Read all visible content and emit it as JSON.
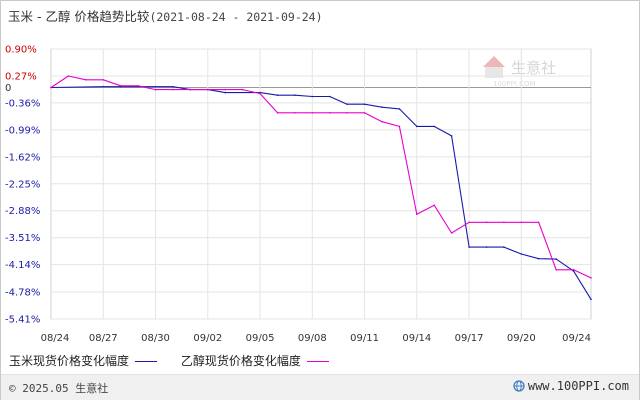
{
  "title": {
    "main": "玉米 - 乙醇 价格趋势比较",
    "range": "(2021-08-24 - 2021-09-24)"
  },
  "watermark": {
    "name": "生意社",
    "url": "100PPI.COM"
  },
  "footer": {
    "copyright": "© 2025.05 生意社",
    "site": "www.100PPI.com"
  },
  "colors": {
    "series1": "#1a1aa8",
    "series2": "#e600cc",
    "tick_red": "#cc0000",
    "tick_blue": "#1a1aa8",
    "grid": "#e4e4e4",
    "zero_line": "#999999"
  },
  "chart_data": {
    "type": "line",
    "title": "玉米 - 乙醇 价格趋势比较",
    "xlabel": "",
    "ylabel": "",
    "x_ticks": [
      "08/24",
      "08/27",
      "08/30",
      "09/02",
      "09/05",
      "09/08",
      "09/11",
      "09/14",
      "09/17",
      "09/20",
      "09/24"
    ],
    "y_ticks": [
      "0.90%",
      "0.27%",
      "0",
      "-0.36%",
      "-0.99%",
      "-1.62%",
      "-2.25%",
      "-2.88%",
      "-3.51%",
      "-4.14%",
      "-4.78%",
      "-5.41%"
    ],
    "ylim": [
      -5.41,
      0.9
    ],
    "xlim": [
      "08/24",
      "09/24"
    ],
    "grid": true,
    "legend_position": "bottom-left",
    "series": [
      {
        "name": "玉米现货价格变化幅度",
        "x": [
          "08/24",
          "08/27",
          "08/28",
          "08/30",
          "08/31",
          "09/01",
          "09/02",
          "09/03",
          "09/05",
          "09/06",
          "09/07",
          "09/08",
          "09/09",
          "09/10",
          "09/11",
          "09/12",
          "09/13",
          "09/14",
          "09/15",
          "09/16",
          "09/17",
          "09/18",
          "09/19",
          "09/20",
          "09/21",
          "09/22",
          "09/23",
          "09/24"
        ],
        "values": [
          0,
          0.02,
          0.02,
          0.02,
          0.02,
          -0.05,
          -0.05,
          -0.12,
          -0.12,
          -0.18,
          -0.18,
          -0.21,
          -0.21,
          -0.39,
          -0.39,
          -0.46,
          -0.5,
          -0.91,
          -0.91,
          -1.13,
          -3.73,
          -3.73,
          -3.73,
          -3.89,
          -4.0,
          -4.01,
          -4.29,
          -4.95
        ]
      },
      {
        "name": "乙醇现货价格变化幅度",
        "x": [
          "08/24",
          "08/25",
          "08/26",
          "08/27",
          "08/28",
          "08/29",
          "08/30",
          "08/31",
          "09/01",
          "09/02",
          "09/03",
          "09/04",
          "09/05",
          "09/06",
          "09/07",
          "09/08",
          "09/09",
          "09/10",
          "09/11",
          "09/12",
          "09/13",
          "09/14",
          "09/15",
          "09/16",
          "09/17",
          "09/18",
          "09/19",
          "09/20",
          "09/21",
          "09/22",
          "09/23",
          "09/24"
        ],
        "values": [
          0,
          0.27,
          0.18,
          0.18,
          0.04,
          0.04,
          -0.05,
          -0.05,
          -0.05,
          -0.05,
          -0.05,
          -0.05,
          -0.14,
          -0.59,
          -0.59,
          -0.59,
          -0.59,
          -0.59,
          -0.59,
          -0.8,
          -0.91,
          -2.96,
          -2.75,
          -3.4,
          -3.15,
          -3.15,
          -3.15,
          -3.15,
          -3.15,
          -4.26,
          -4.26,
          -4.45
        ]
      }
    ]
  }
}
